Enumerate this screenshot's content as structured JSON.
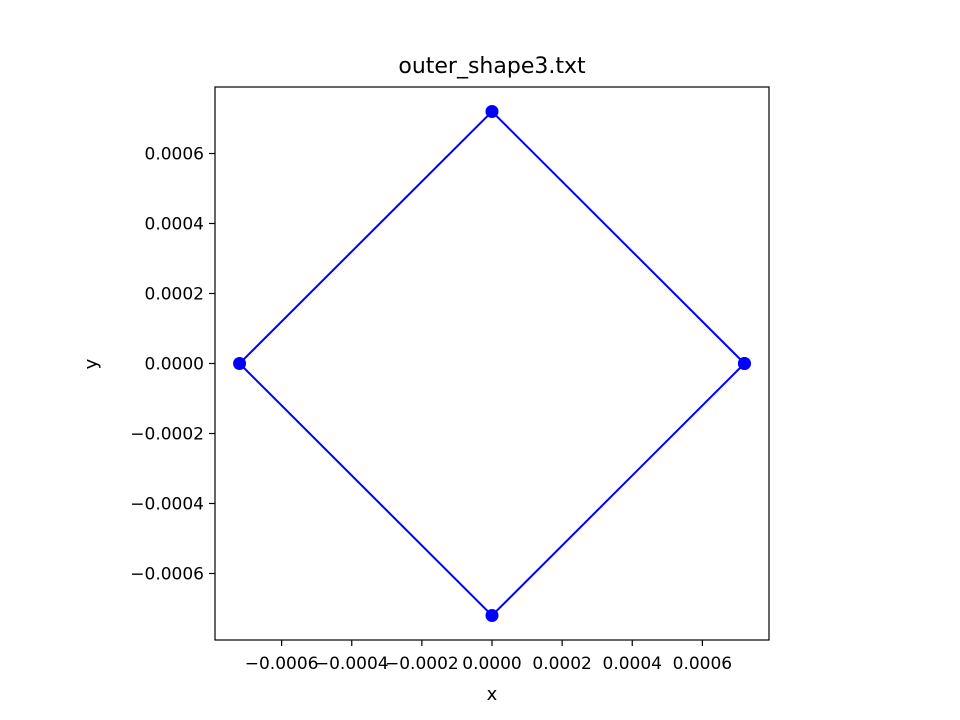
{
  "chart_data": {
    "type": "line",
    "title": "outer_shape3.txt",
    "xlabel": "x",
    "ylabel": "y",
    "xlim": [
      -0.00079,
      0.00079
    ],
    "ylim": [
      -0.00079,
      0.00079
    ],
    "grid": false,
    "x_ticks": [
      -0.0006,
      -0.0004,
      -0.0002,
      0.0,
      0.0002,
      0.0004,
      0.0006
    ],
    "x_tick_labels": [
      "−0.0006",
      "−0.0004",
      "−0.0002",
      "0.0000",
      "0.0002",
      "0.0004",
      "0.0006"
    ],
    "y_ticks": [
      -0.0006,
      -0.0004,
      -0.0002,
      0.0,
      0.0002,
      0.0004,
      0.0006
    ],
    "y_tick_labels": [
      "−0.0006",
      "−0.0004",
      "−0.0002",
      "0.0000",
      "0.0002",
      "0.0004",
      "0.0006"
    ],
    "series": [
      {
        "color": "#0000ff",
        "marker": "circle",
        "points": [
          {
            "x": 0.00072,
            "y": 0.0
          },
          {
            "x": 0.0,
            "y": 0.00072
          },
          {
            "x": -0.00072,
            "y": 0.0
          },
          {
            "x": 0.0,
            "y": -0.00072
          },
          {
            "x": 0.00072,
            "y": 0.0
          }
        ]
      }
    ]
  }
}
